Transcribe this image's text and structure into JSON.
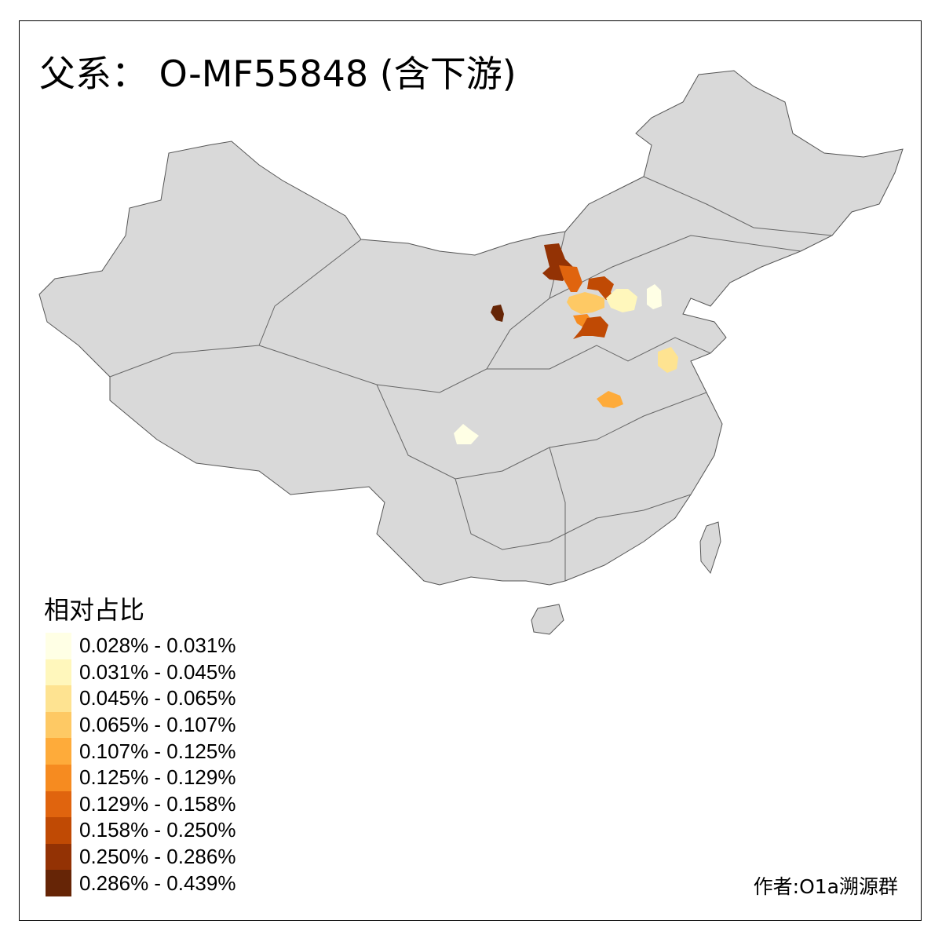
{
  "title": "父系： O-MF55848 (含下游)",
  "legend": {
    "title": "相对占比",
    "classes": [
      {
        "label": "0.028% - 0.031%",
        "color": "#FFFFE5"
      },
      {
        "label": "0.031% - 0.045%",
        "color": "#FFF7BC"
      },
      {
        "label": "0.045% - 0.065%",
        "color": "#FEE391"
      },
      {
        "label": "0.065% - 0.107%",
        "color": "#FEC964"
      },
      {
        "label": "0.107% - 0.125%",
        "color": "#FEAB3A"
      },
      {
        "label": "0.125% - 0.129%",
        "color": "#F68B20"
      },
      {
        "label": "0.129% - 0.158%",
        "color": "#E0640E"
      },
      {
        "label": "0.158% - 0.250%",
        "color": "#C04A04"
      },
      {
        "label": "0.250% - 0.286%",
        "color": "#933204"
      },
      {
        "label": "0.286% - 0.439%",
        "color": "#662506"
      }
    ]
  },
  "credit": "作者:O1a溯源群",
  "map": {
    "base_color": "#D9D9D9",
    "border_color": "#555555",
    "highlighted_regions": [
      {
        "class": 8
      },
      {
        "class": 6
      },
      {
        "class": 7
      },
      {
        "class": 3
      },
      {
        "class": 5
      },
      {
        "class": 7
      },
      {
        "class": 1
      },
      {
        "class": 0
      },
      {
        "class": 2
      },
      {
        "class": 4
      },
      {
        "class": 9
      },
      {
        "class": 0
      }
    ]
  }
}
